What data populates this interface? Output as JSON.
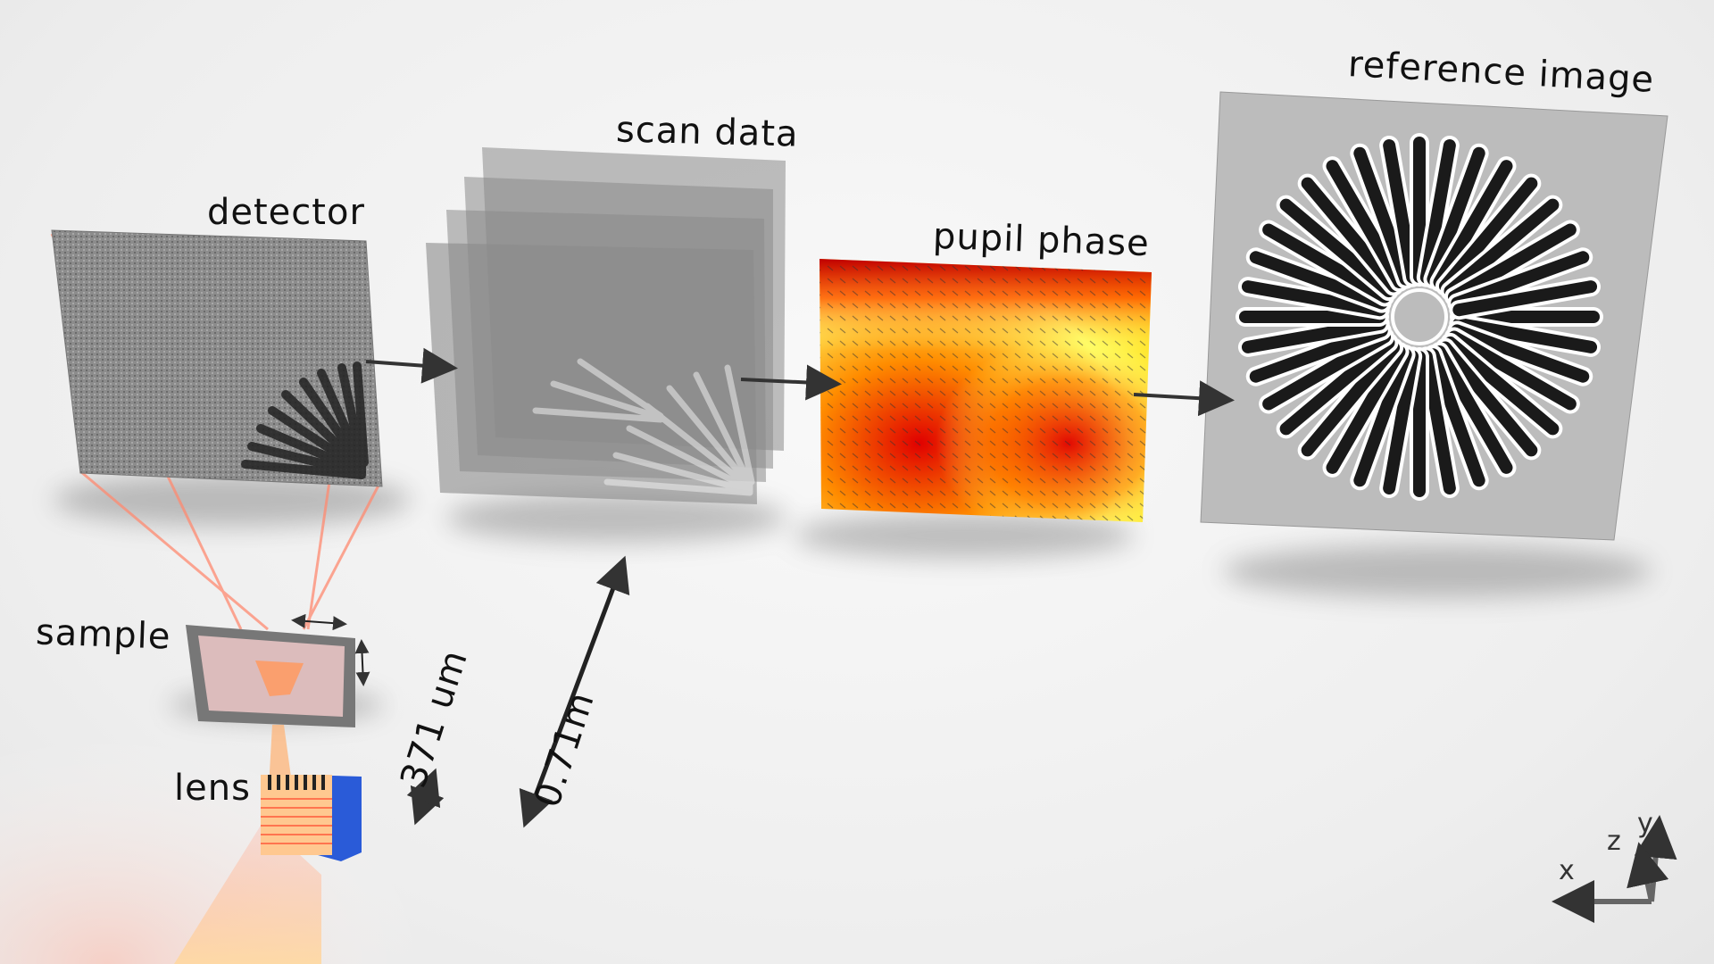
{
  "labels": {
    "detector": "detector",
    "scan_data": "scan data",
    "pupil_phase": "pupil phase",
    "reference_image": "reference image",
    "sample": "sample",
    "lens": "lens",
    "dist_small": "371 um",
    "dist_large": "0.71m"
  },
  "axes": {
    "x": "x",
    "y": "y",
    "z": "z"
  },
  "colors": {
    "beam": "#ff8a70",
    "arrow": "#333333",
    "phase_hot": "#e00000",
    "phase_cold": "#ffff66",
    "lens_blue": "#2a5bd8"
  },
  "icons": {
    "flow_arrow": "arrow-right-icon",
    "double_arrow": "double-arrow-icon"
  }
}
